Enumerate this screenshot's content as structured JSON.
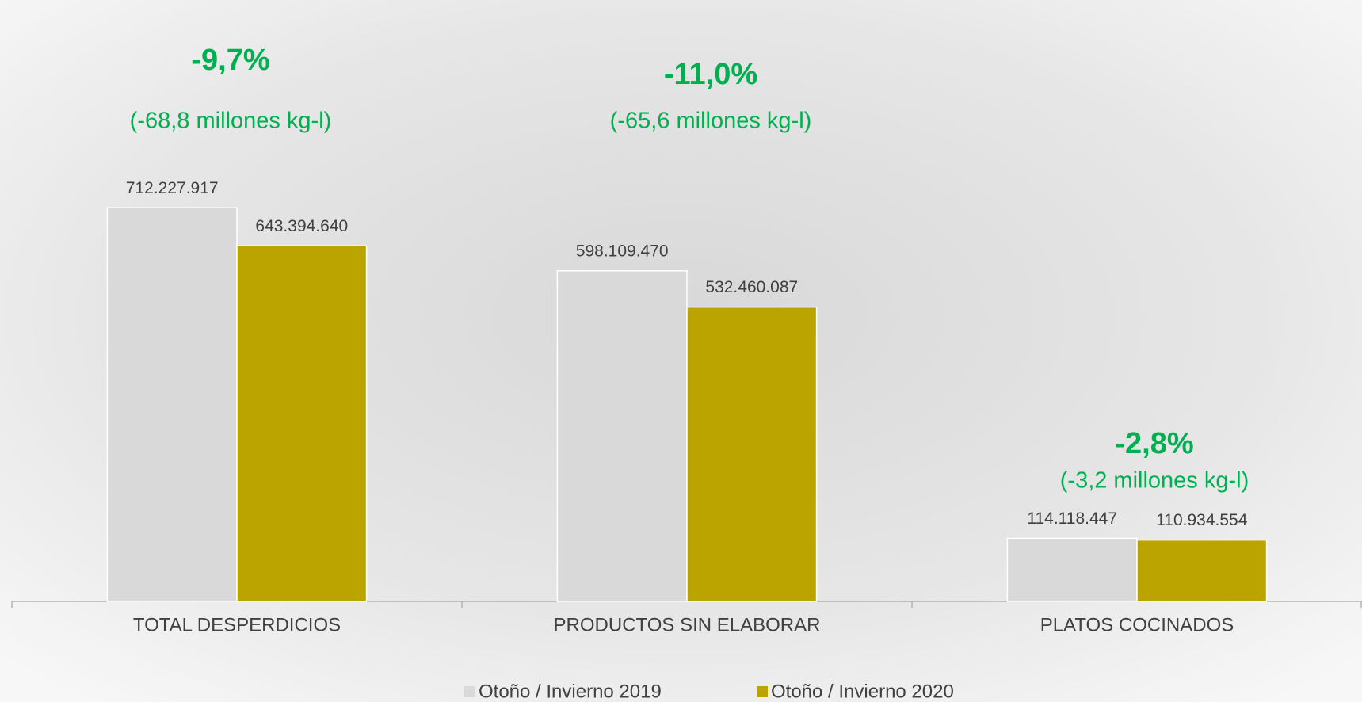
{
  "chart_data": {
    "type": "bar",
    "categories": [
      "TOTAL DESPERDICIOS",
      "PRODUCTOS SIN ELABORAR",
      "PLATOS COCINADOS"
    ],
    "series": [
      {
        "name": "Otoño / Invierno 2019",
        "color": "#d9d9d9",
        "values": [
          712227917,
          598109470,
          114118447
        ],
        "value_labels": [
          "712.227.917",
          "598.109.470",
          "114.118.447"
        ]
      },
      {
        "name": "Otoño / Invierno 2020",
        "color": "#bca400",
        "values": [
          643394640,
          532460087,
          110934554
        ],
        "value_labels": [
          "643.394.640",
          "532.460.087",
          "110.934.554"
        ]
      }
    ],
    "annotations": [
      {
        "change": "-9,7%",
        "detail": "(-68,8 millones kg-l)"
      },
      {
        "change": "-11,0%",
        "detail": "(-65,6 millones kg-l)"
      },
      {
        "change": "-2,8%",
        "detail": "(-3,2 millones kg-l)"
      }
    ],
    "annotation_color": "#00b050",
    "ylim": [
      0,
      800000000
    ],
    "legend": "bottom"
  }
}
